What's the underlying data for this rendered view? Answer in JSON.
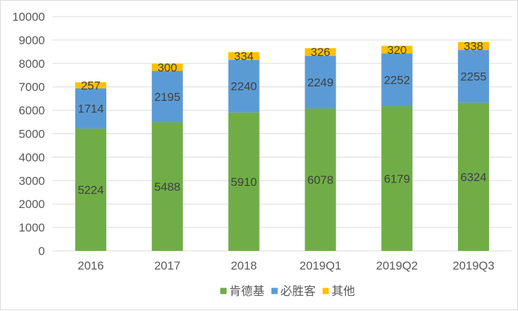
{
  "chart_data": {
    "type": "bar",
    "stacked": true,
    "categories": [
      "2016",
      "2017",
      "2018",
      "2019Q1",
      "2019Q2",
      "2019Q3"
    ],
    "series": [
      {
        "name": "肯德基",
        "color": "#70ad47",
        "values": [
          5224,
          5488,
          5910,
          6078,
          6179,
          6324
        ]
      },
      {
        "name": "必胜客",
        "color": "#5b9bd5",
        "values": [
          1714,
          2195,
          2240,
          2249,
          2252,
          2255
        ]
      },
      {
        "name": "其他",
        "color": "#ffc000",
        "values": [
          257,
          300,
          334,
          326,
          320,
          338
        ]
      }
    ],
    "ylim": [
      0,
      10000
    ],
    "yticks": [
      0,
      1000,
      2000,
      3000,
      4000,
      5000,
      6000,
      7000,
      8000,
      9000,
      10000
    ],
    "grid": true,
    "legend_position": "bottom",
    "title": "",
    "xlabel": "",
    "ylabel": ""
  }
}
